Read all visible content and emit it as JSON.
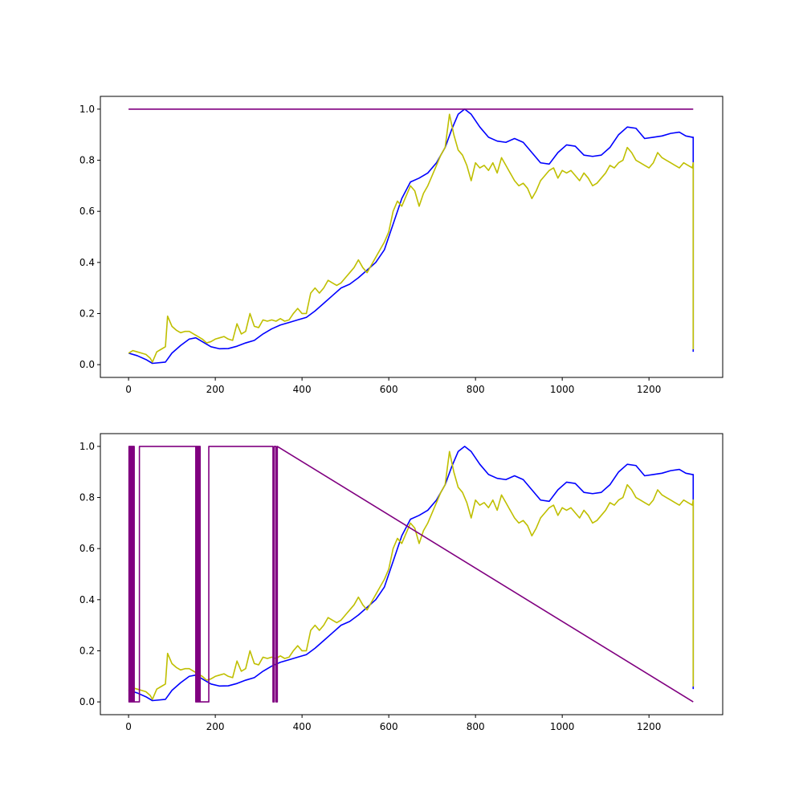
{
  "chart_data": [
    {
      "type": "line",
      "title": "",
      "xlabel": "",
      "ylabel": "",
      "xlim": [
        -65,
        1370
      ],
      "ylim": [
        -0.05,
        1.05
      ],
      "xticks": [
        0,
        200,
        400,
        600,
        800,
        1000,
        1200
      ],
      "yticks": [
        0.0,
        0.2,
        0.4,
        0.6,
        0.8,
        1.0
      ],
      "xtick_labels": [
        "0",
        "200",
        "400",
        "600",
        "800",
        "1000",
        "1200"
      ],
      "ytick_labels": [
        "0.0",
        "0.2",
        "0.4",
        "0.6",
        "0.8",
        "1.0"
      ],
      "grid": false,
      "series": [
        {
          "color": "#0000ff",
          "x": [
            0,
            20,
            40,
            55,
            85,
            100,
            120,
            140,
            155,
            170,
            190,
            210,
            230,
            250,
            270,
            290,
            310,
            330,
            350,
            370,
            390,
            410,
            430,
            450,
            470,
            490,
            510,
            530,
            550,
            570,
            590,
            610,
            630,
            650,
            670,
            690,
            710,
            730,
            745,
            760,
            775,
            790,
            810,
            830,
            850,
            870,
            890,
            910,
            930,
            950,
            970,
            990,
            1010,
            1030,
            1050,
            1070,
            1090,
            1110,
            1130,
            1150,
            1170,
            1190,
            1210,
            1230,
            1250,
            1270,
            1285,
            1300,
            1302,
            1302
          ],
          "y": [
            0.045,
            0.035,
            0.02,
            0.005,
            0.01,
            0.045,
            0.075,
            0.1,
            0.105,
            0.09,
            0.07,
            0.062,
            0.063,
            0.072,
            0.085,
            0.095,
            0.12,
            0.14,
            0.155,
            0.165,
            0.175,
            0.185,
            0.21,
            0.24,
            0.27,
            0.3,
            0.315,
            0.34,
            0.37,
            0.4,
            0.45,
            0.55,
            0.65,
            0.715,
            0.73,
            0.75,
            0.79,
            0.85,
            0.92,
            0.98,
            1.0,
            0.98,
            0.93,
            0.89,
            0.875,
            0.87,
            0.885,
            0.87,
            0.83,
            0.79,
            0.785,
            0.83,
            0.86,
            0.855,
            0.82,
            0.815,
            0.82,
            0.85,
            0.9,
            0.93,
            0.925,
            0.885,
            0.89,
            0.895,
            0.905,
            0.91,
            0.895,
            0.89,
            0.89,
            0.05
          ]
        },
        {
          "color": "#bfbf00",
          "x": [
            0,
            10,
            20,
            30,
            40,
            50,
            55,
            65,
            75,
            85,
            90,
            100,
            110,
            120,
            130,
            140,
            150,
            160,
            170,
            180,
            190,
            200,
            210,
            220,
            230,
            240,
            250,
            260,
            270,
            280,
            290,
            300,
            310,
            320,
            330,
            340,
            350,
            360,
            370,
            380,
            390,
            400,
            410,
            420,
            430,
            440,
            450,
            460,
            470,
            480,
            490,
            500,
            510,
            520,
            530,
            540,
            550,
            560,
            570,
            580,
            590,
            600,
            610,
            620,
            630,
            640,
            650,
            660,
            670,
            680,
            690,
            700,
            710,
            720,
            730,
            740,
            750,
            760,
            770,
            780,
            790,
            800,
            810,
            820,
            830,
            840,
            850,
            860,
            870,
            880,
            890,
            900,
            910,
            920,
            930,
            940,
            950,
            960,
            970,
            980,
            990,
            1000,
            1010,
            1020,
            1030,
            1040,
            1050,
            1060,
            1070,
            1080,
            1090,
            1100,
            1110,
            1120,
            1130,
            1140,
            1150,
            1160,
            1170,
            1180,
            1190,
            1200,
            1210,
            1220,
            1230,
            1240,
            1250,
            1260,
            1270,
            1280,
            1290,
            1300,
            1302,
            1302
          ],
          "y": [
            0.045,
            0.055,
            0.05,
            0.045,
            0.04,
            0.025,
            0.01,
            0.05,
            0.06,
            0.07,
            0.19,
            0.15,
            0.135,
            0.125,
            0.13,
            0.13,
            0.12,
            0.11,
            0.1,
            0.085,
            0.09,
            0.1,
            0.105,
            0.11,
            0.1,
            0.095,
            0.16,
            0.12,
            0.13,
            0.2,
            0.15,
            0.145,
            0.175,
            0.17,
            0.175,
            0.17,
            0.18,
            0.17,
            0.175,
            0.2,
            0.22,
            0.2,
            0.2,
            0.28,
            0.3,
            0.28,
            0.3,
            0.33,
            0.32,
            0.31,
            0.32,
            0.34,
            0.36,
            0.38,
            0.41,
            0.38,
            0.36,
            0.39,
            0.42,
            0.45,
            0.48,
            0.52,
            0.6,
            0.64,
            0.62,
            0.66,
            0.7,
            0.68,
            0.62,
            0.67,
            0.7,
            0.74,
            0.78,
            0.82,
            0.85,
            0.98,
            0.9,
            0.84,
            0.82,
            0.78,
            0.72,
            0.79,
            0.77,
            0.78,
            0.76,
            0.79,
            0.75,
            0.81,
            0.78,
            0.75,
            0.72,
            0.7,
            0.71,
            0.69,
            0.65,
            0.68,
            0.72,
            0.74,
            0.76,
            0.77,
            0.73,
            0.76,
            0.75,
            0.76,
            0.74,
            0.72,
            0.75,
            0.73,
            0.7,
            0.71,
            0.73,
            0.75,
            0.78,
            0.77,
            0.79,
            0.8,
            0.85,
            0.83,
            0.8,
            0.79,
            0.78,
            0.77,
            0.79,
            0.83,
            0.81,
            0.8,
            0.79,
            0.78,
            0.77,
            0.79,
            0.78,
            0.77,
            0.79,
            0.06
          ]
        },
        {
          "color": "#800080",
          "x": [
            0,
            1302
          ],
          "y": [
            1.0,
            1.0
          ]
        }
      ]
    },
    {
      "type": "line",
      "title": "",
      "xlabel": "",
      "ylabel": "",
      "xlim": [
        -65,
        1370
      ],
      "ylim": [
        -0.05,
        1.05
      ],
      "xticks": [
        0,
        200,
        400,
        600,
        800,
        1000,
        1200
      ],
      "yticks": [
        0.0,
        0.2,
        0.4,
        0.6,
        0.8,
        1.0
      ],
      "xtick_labels": [
        "0",
        "200",
        "400",
        "600",
        "800",
        "1000",
        "1200"
      ],
      "ytick_labels": [
        "0.0",
        "0.2",
        "0.4",
        "0.6",
        "0.8",
        "1.0"
      ],
      "grid": false,
      "series": [
        {
          "color": "#0000ff",
          "x": [
            0,
            20,
            40,
            55,
            85,
            100,
            120,
            140,
            155,
            170,
            190,
            210,
            230,
            250,
            270,
            290,
            310,
            330,
            350,
            370,
            390,
            410,
            430,
            450,
            470,
            490,
            510,
            530,
            550,
            570,
            590,
            610,
            630,
            650,
            670,
            690,
            710,
            730,
            745,
            760,
            775,
            790,
            810,
            830,
            850,
            870,
            890,
            910,
            930,
            950,
            970,
            990,
            1010,
            1030,
            1050,
            1070,
            1090,
            1110,
            1130,
            1150,
            1170,
            1190,
            1210,
            1230,
            1250,
            1270,
            1285,
            1300,
            1302,
            1302
          ],
          "y": [
            0.045,
            0.035,
            0.02,
            0.005,
            0.01,
            0.045,
            0.075,
            0.1,
            0.105,
            0.09,
            0.07,
            0.062,
            0.063,
            0.072,
            0.085,
            0.095,
            0.12,
            0.14,
            0.155,
            0.165,
            0.175,
            0.185,
            0.21,
            0.24,
            0.27,
            0.3,
            0.315,
            0.34,
            0.37,
            0.4,
            0.45,
            0.55,
            0.65,
            0.715,
            0.73,
            0.75,
            0.79,
            0.85,
            0.92,
            0.98,
            1.0,
            0.98,
            0.93,
            0.89,
            0.875,
            0.87,
            0.885,
            0.87,
            0.83,
            0.79,
            0.785,
            0.83,
            0.86,
            0.855,
            0.82,
            0.815,
            0.82,
            0.85,
            0.9,
            0.93,
            0.925,
            0.885,
            0.89,
            0.895,
            0.905,
            0.91,
            0.895,
            0.89,
            0.89,
            0.05
          ]
        },
        {
          "color": "#bfbf00",
          "x": [
            0,
            10,
            20,
            30,
            40,
            50,
            55,
            65,
            75,
            85,
            90,
            100,
            110,
            120,
            130,
            140,
            150,
            160,
            170,
            180,
            190,
            200,
            210,
            220,
            230,
            240,
            250,
            260,
            270,
            280,
            290,
            300,
            310,
            320,
            330,
            340,
            350,
            360,
            370,
            380,
            390,
            400,
            410,
            420,
            430,
            440,
            450,
            460,
            470,
            480,
            490,
            500,
            510,
            520,
            530,
            540,
            550,
            560,
            570,
            580,
            590,
            600,
            610,
            620,
            630,
            640,
            650,
            660,
            670,
            680,
            690,
            700,
            710,
            720,
            730,
            740,
            750,
            760,
            770,
            780,
            790,
            800,
            810,
            820,
            830,
            840,
            850,
            860,
            870,
            880,
            890,
            900,
            910,
            920,
            930,
            940,
            950,
            960,
            970,
            980,
            990,
            1000,
            1010,
            1020,
            1030,
            1040,
            1050,
            1060,
            1070,
            1080,
            1090,
            1100,
            1110,
            1120,
            1130,
            1140,
            1150,
            1160,
            1170,
            1180,
            1190,
            1200,
            1210,
            1220,
            1230,
            1240,
            1250,
            1260,
            1270,
            1280,
            1290,
            1300,
            1302,
            1302
          ],
          "y": [
            0.045,
            0.055,
            0.05,
            0.045,
            0.04,
            0.025,
            0.01,
            0.05,
            0.06,
            0.07,
            0.19,
            0.15,
            0.135,
            0.125,
            0.13,
            0.13,
            0.12,
            0.11,
            0.1,
            0.085,
            0.09,
            0.1,
            0.105,
            0.11,
            0.1,
            0.095,
            0.16,
            0.12,
            0.13,
            0.2,
            0.15,
            0.145,
            0.175,
            0.17,
            0.175,
            0.17,
            0.18,
            0.17,
            0.175,
            0.2,
            0.22,
            0.2,
            0.2,
            0.28,
            0.3,
            0.28,
            0.3,
            0.33,
            0.32,
            0.31,
            0.32,
            0.34,
            0.36,
            0.38,
            0.41,
            0.38,
            0.36,
            0.39,
            0.42,
            0.45,
            0.48,
            0.52,
            0.6,
            0.64,
            0.62,
            0.66,
            0.7,
            0.68,
            0.62,
            0.67,
            0.7,
            0.74,
            0.78,
            0.82,
            0.85,
            0.98,
            0.9,
            0.84,
            0.82,
            0.78,
            0.72,
            0.79,
            0.77,
            0.78,
            0.76,
            0.79,
            0.75,
            0.81,
            0.78,
            0.75,
            0.72,
            0.7,
            0.71,
            0.69,
            0.65,
            0.68,
            0.72,
            0.74,
            0.76,
            0.77,
            0.73,
            0.76,
            0.75,
            0.76,
            0.74,
            0.72,
            0.75,
            0.73,
            0.7,
            0.71,
            0.73,
            0.75,
            0.78,
            0.77,
            0.79,
            0.8,
            0.85,
            0.83,
            0.8,
            0.79,
            0.78,
            0.77,
            0.79,
            0.83,
            0.81,
            0.8,
            0.79,
            0.78,
            0.77,
            0.79,
            0.78,
            0.77,
            0.79,
            0.06
          ]
        },
        {
          "color": "#800080",
          "x": [
            0,
            1,
            1,
            2,
            2,
            3,
            3,
            4,
            4,
            5,
            5,
            6,
            6,
            7,
            7,
            8,
            8,
            9,
            9,
            10,
            10,
            11,
            11,
            12,
            12,
            13,
            13,
            25,
            25,
            155,
            155,
            156,
            156,
            157,
            157,
            158,
            158,
            159,
            159,
            160,
            160,
            161,
            161,
            162,
            162,
            163,
            163,
            164,
            164,
            165,
            165,
            185,
            185,
            333,
            333,
            336,
            336,
            340,
            340,
            343,
            343,
            1302
          ],
          "y": [
            1,
            1,
            0,
            0,
            1,
            1,
            0,
            0,
            1,
            1,
            0,
            0,
            1,
            1,
            0,
            0,
            1,
            1,
            0,
            0,
            1,
            1,
            0,
            0,
            1,
            1,
            0,
            0,
            1,
            1,
            0,
            0,
            1,
            1,
            0,
            0,
            1,
            1,
            0,
            0,
            1,
            1,
            0,
            0,
            1,
            1,
            0,
            0,
            1,
            1,
            0,
            0,
            1,
            1,
            0,
            0,
            1,
            1,
            0,
            0,
            1,
            0
          ]
        }
      ]
    }
  ]
}
